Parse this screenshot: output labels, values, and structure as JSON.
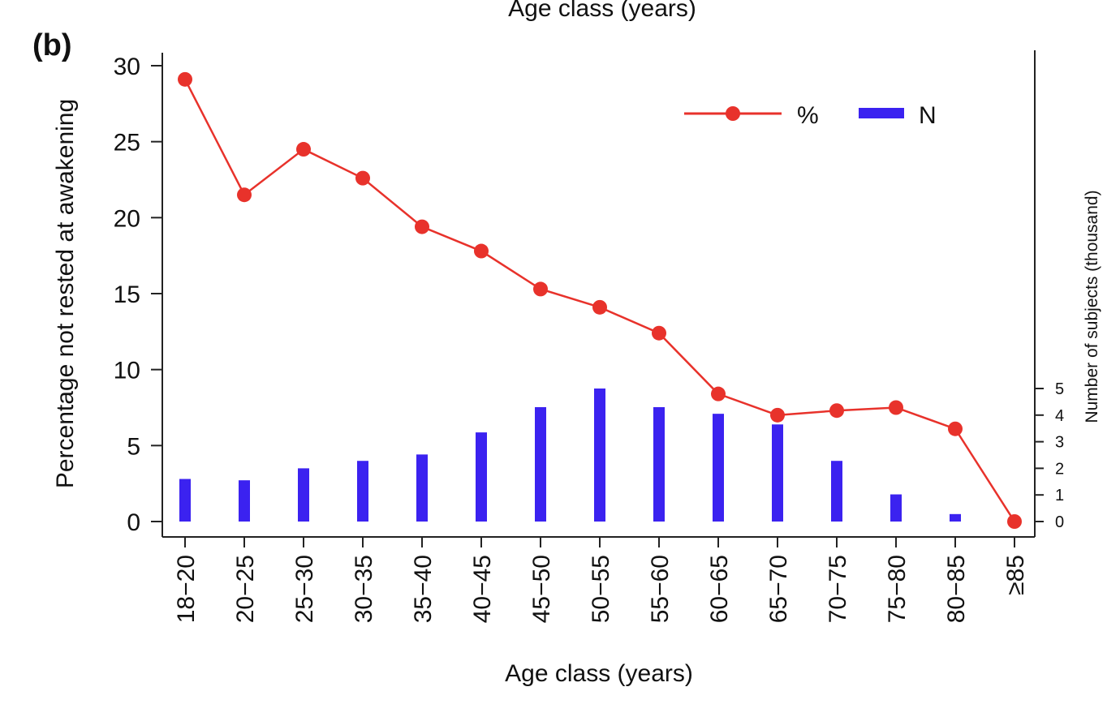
{
  "figure": {
    "top_title": "Age class (years)",
    "panel_label": "(b)"
  },
  "colors": {
    "line": "#e8322b",
    "bars": "#3b22f0",
    "axis": "#222222"
  },
  "chart_data": {
    "type": "bar",
    "xlabel": "Age class (years)",
    "ylabel": "Percentage not rested at awakening",
    "ylabel_right": "Number of subjects (thousand)",
    "categories": [
      "18−20",
      "20−25",
      "25−30",
      "30−35",
      "35−40",
      "40−45",
      "45−50",
      "50−55",
      "55−60",
      "60−65",
      "65−70",
      "70−75",
      "75−80",
      "80−85",
      "≥85"
    ],
    "ylim": [
      0,
      30
    ],
    "yticks": [
      0,
      5,
      10,
      15,
      20,
      25,
      30
    ],
    "ylim_right": [
      0,
      5
    ],
    "yticks_right": [
      0,
      1,
      2,
      3,
      4,
      5
    ],
    "legend_position": "top-right",
    "grid": false,
    "series": [
      {
        "name": "%",
        "type": "line",
        "axis": "left",
        "values": [
          29.1,
          21.5,
          24.5,
          22.6,
          19.4,
          17.8,
          15.3,
          14.1,
          12.4,
          8.4,
          7.0,
          7.3,
          7.5,
          6.1,
          0.0
        ]
      },
      {
        "name": "N",
        "type": "bar",
        "axis": "right",
        "values": [
          1.6,
          1.55,
          2.0,
          2.28,
          2.52,
          3.35,
          4.3,
          5.0,
          4.3,
          4.05,
          3.65,
          2.28,
          1.02,
          0.28,
          0.08
        ]
      }
    ]
  }
}
